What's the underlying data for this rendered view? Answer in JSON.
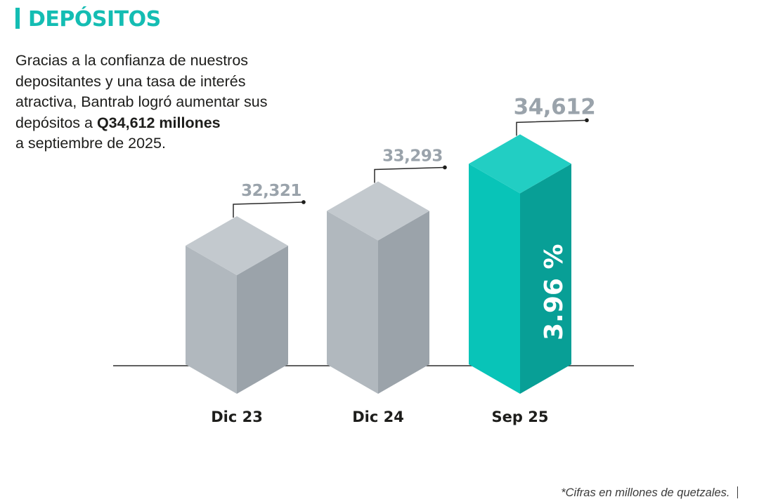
{
  "header": {
    "title": "DEPÓSITOS"
  },
  "intro": {
    "text_before": "Gracias a la confianza de nuestros depositantes y una tasa de interés atractiva, Bantrab logró aumentar sus depósitos a ",
    "text_bold": "Q34,612 millones",
    "text_after": "a septiembre de 2025."
  },
  "footnote": "*Cifras en millones de quetzales.",
  "colors": {
    "accent": "#14bdb3",
    "bar_gray": "#a7b0b8",
    "label_gray": "#9aa3ab",
    "text": "#1d1d1b"
  },
  "chart_data": {
    "type": "bar",
    "categories": [
      "Dic 23",
      "Dic 24",
      "Sep 25"
    ],
    "values": [
      32321,
      33293,
      34612
    ],
    "value_labels": [
      "32,321",
      "33,293",
      "34,612"
    ],
    "highlight_index": 2,
    "growth_label": "3.96 %",
    "title": "",
    "xlabel": "",
    "ylabel": "",
    "grid": false,
    "style": "3d-isometric-cubes"
  }
}
